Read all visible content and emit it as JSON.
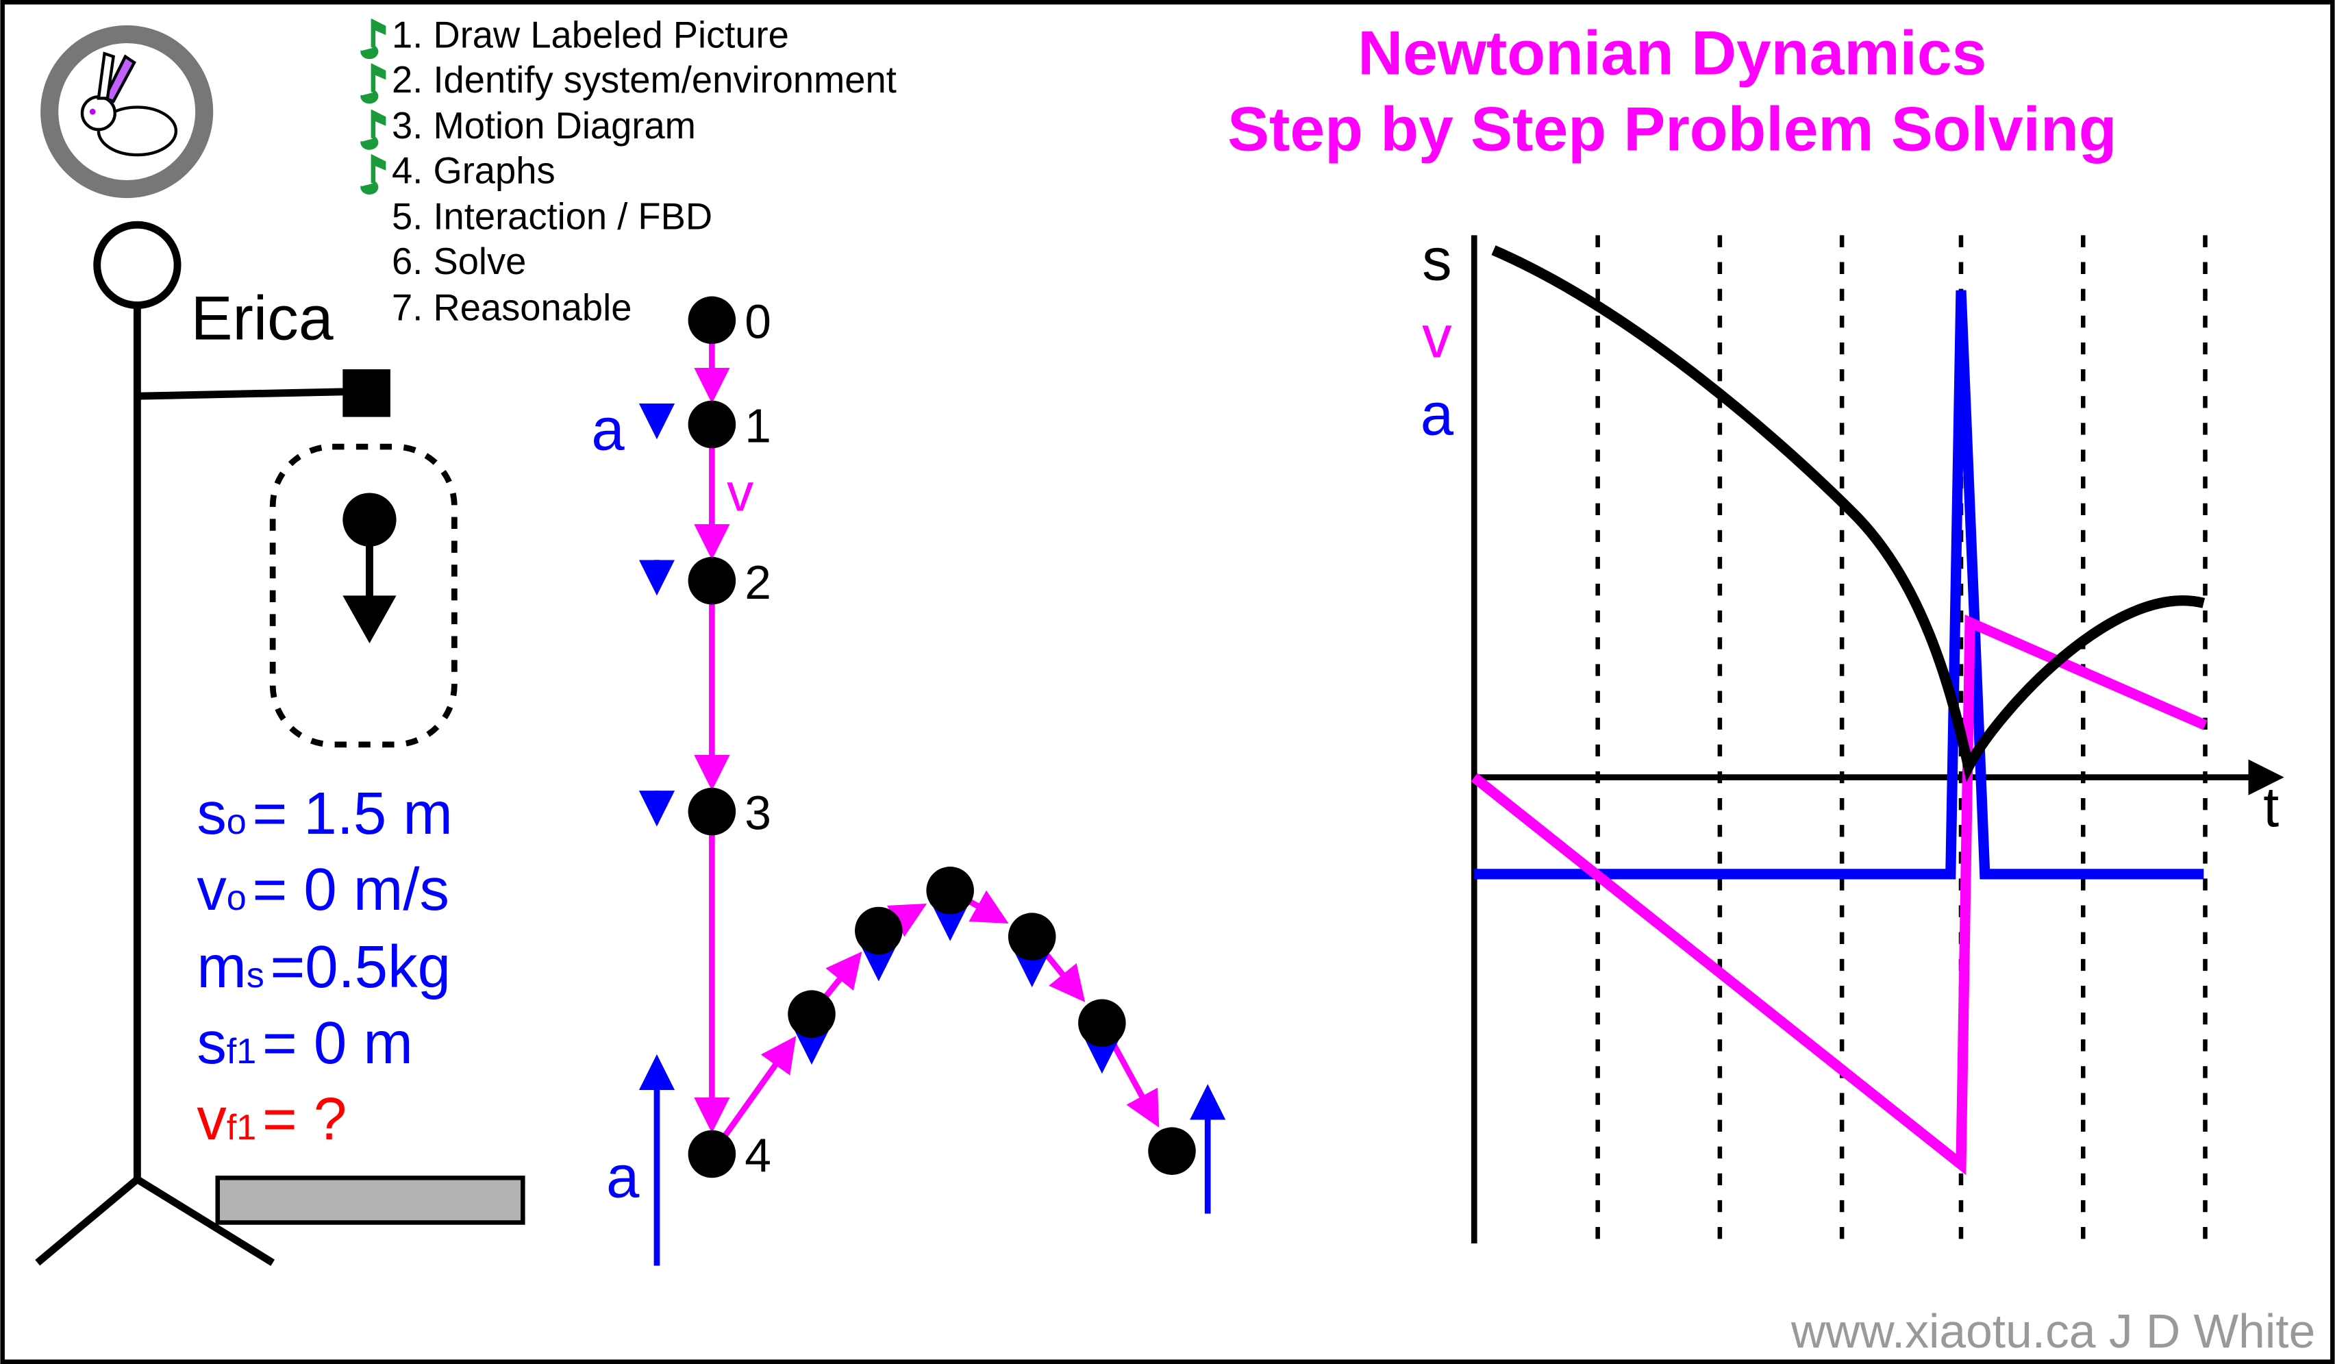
{
  "title": {
    "line1": "Newtonian Dynamics",
    "line2": "Step by Step Problem Solving"
  },
  "steps": [
    "1. Draw Labeled Picture",
    "2. Identify system/environment",
    "3. Motion Diagram",
    "4. Graphs",
    "5. Interaction / FBD",
    "6. Solve",
    "7. Reasonable"
  ],
  "picture": {
    "name": "Erica",
    "givens": [
      {
        "symbol": "s",
        "sub": "o",
        "rest": "= 1.5 m"
      },
      {
        "symbol": "v",
        "sub": "o",
        "rest": "= 0 m/s"
      },
      {
        "symbol": "m",
        "sub": "s",
        "rest": "=0.5kg"
      },
      {
        "symbol": "s",
        "sub": "f1",
        "rest": "= 0 m"
      },
      {
        "symbol": "v",
        "sub": "f1",
        "rest": "= ?"
      }
    ]
  },
  "motion_diagram": {
    "points": [
      "0",
      "1",
      "2",
      "3",
      "4"
    ],
    "accel_label": "a",
    "velocity_label": "v",
    "bounce_accel_label": "a"
  },
  "graph": {
    "labels": [
      "s",
      "v",
      "a"
    ],
    "x_label": "t"
  },
  "footer": "www.xiaotu.ca J D White"
}
